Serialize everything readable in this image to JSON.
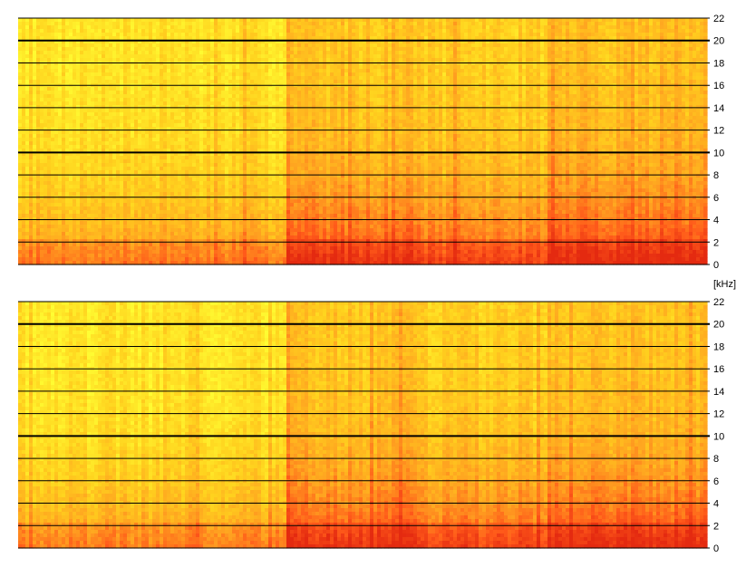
{
  "chart_data": [
    {
      "type": "heatmap",
      "channel": "top",
      "y_unit": "[kHz]",
      "ylim": [
        0,
        22
      ],
      "yticks": [
        0,
        2,
        4,
        6,
        8,
        10,
        12,
        14,
        16,
        18,
        20,
        22
      ],
      "bold_gridlines": [
        10,
        20
      ],
      "grid": true,
      "colormap": [
        "#ffff33",
        "#ffd21e",
        "#ffa020",
        "#ff5a1a",
        "#e42a10"
      ],
      "description_of_energy": {
        "time_segments": [
          {
            "start": 0.0,
            "end": 0.39,
            "base_level": 0.28
          },
          {
            "start": 0.39,
            "end": 0.585,
            "base_level": 0.58
          },
          {
            "start": 0.585,
            "end": 0.77,
            "base_level": 0.48
          },
          {
            "start": 0.77,
            "end": 1.0,
            "base_level": 0.62
          }
        ]
      }
    },
    {
      "type": "heatmap",
      "channel": "bottom",
      "y_unit": "[kHz]",
      "ylim": [
        0,
        22
      ],
      "yticks": [
        0,
        2,
        4,
        6,
        8,
        10,
        12,
        14,
        16,
        18,
        20,
        22
      ],
      "bold_gridlines": [
        10,
        20
      ],
      "grid": true,
      "colormap": [
        "#ffff33",
        "#ffd21e",
        "#ffa020",
        "#ff5a1a",
        "#e42a10"
      ],
      "description_of_energy": {
        "time_segments": [
          {
            "start": 0.0,
            "end": 0.39,
            "base_level": 0.26
          },
          {
            "start": 0.39,
            "end": 0.585,
            "base_level": 0.56
          },
          {
            "start": 0.585,
            "end": 0.77,
            "base_level": 0.47
          },
          {
            "start": 0.77,
            "end": 1.0,
            "base_level": 0.6
          }
        ]
      }
    }
  ]
}
